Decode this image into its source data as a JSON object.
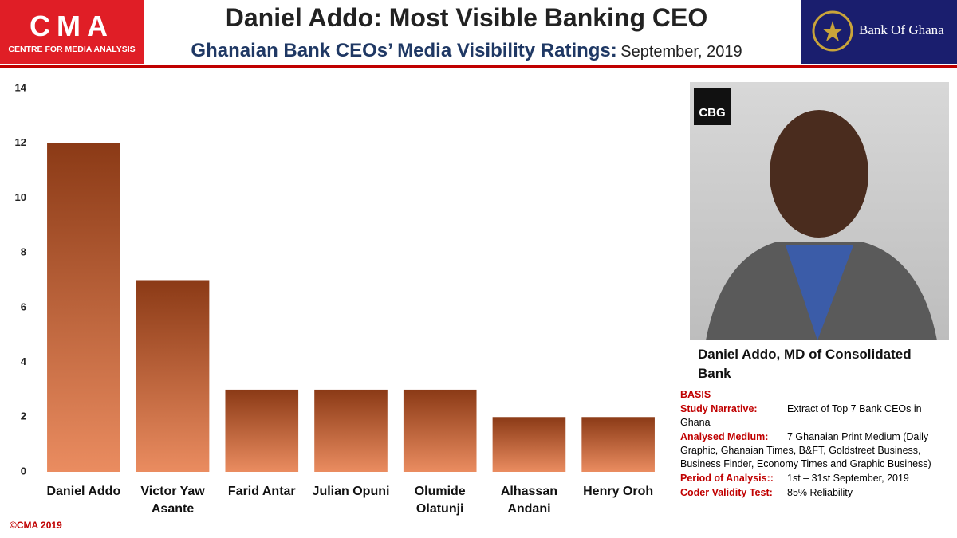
{
  "header": {
    "logo_text": "CMA",
    "logo_subtext": "CENTRE FOR MEDIA ANALYSIS",
    "partner": "Bank Of Ghana"
  },
  "chart_data": {
    "type": "bar",
    "title": "Daniel Addo: Most Visible Banking CEO",
    "subtitle": "Ghanaian Bank CEOs’ Media Visibility Ratings:",
    "subtitle_date": "September, 2019",
    "categories": [
      "Daniel Addo",
      "Victor Yaw Asante",
      "Farid Antar",
      "Julian Opuni",
      "Olumide Olatunji",
      "Alhassan Andani",
      "Henry Oroh"
    ],
    "values": [
      12,
      7,
      3,
      3,
      3,
      2,
      2
    ],
    "color": "#8b3a16",
    "color_bottom": "#ea8c60",
    "ylim": [
      0,
      14
    ],
    "yticks": [
      0,
      2,
      4,
      6,
      8,
      10,
      12,
      14
    ],
    "grid": false
  },
  "photo": {
    "logo": "CBG",
    "caption": "Daniel Addo, MD of Consolidated Bank"
  },
  "basis": {
    "heading": "BASIS",
    "items": [
      {
        "label": "Study Narrative:",
        "text": "Extract of Top 7 Bank CEOs in Ghana"
      },
      {
        "label": "Analysed Medium:",
        "text": "7 Ghanaian Print Medium (Daily Graphic, Ghanaian Times, B&FT, Goldstreet Business, Business Finder, Economy Times and Graphic Business)"
      },
      {
        "label": "Period of Analysis::",
        "text": "1st – 31st September, 2019"
      },
      {
        "label": "Coder Validity Test:",
        "text": "85% Reliability"
      }
    ]
  },
  "footer": "©CMA 2019"
}
